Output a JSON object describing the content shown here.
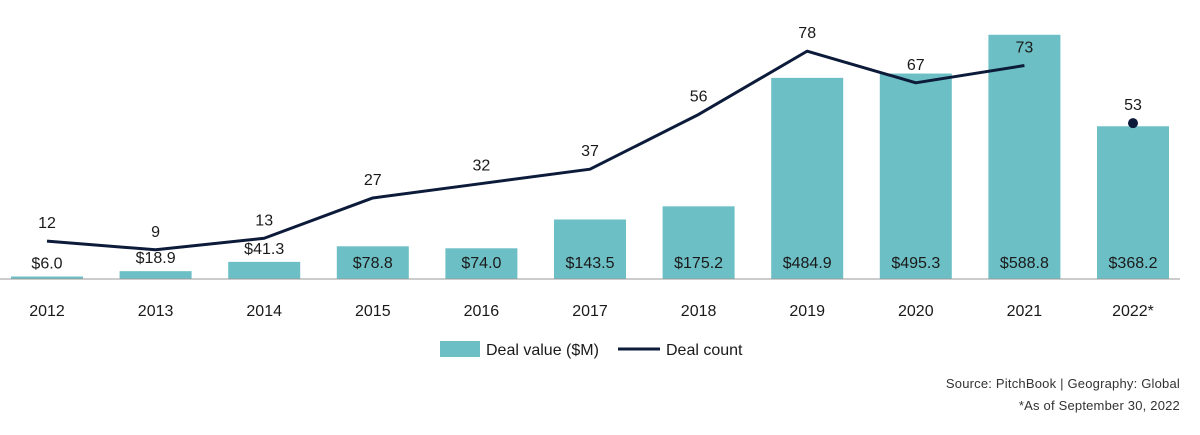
{
  "chart_data": {
    "type": "bar",
    "categories": [
      "2012",
      "2013",
      "2014",
      "2015",
      "2016",
      "2017",
      "2018",
      "2019",
      "2020",
      "2021",
      "2022*"
    ],
    "series": [
      {
        "name": "Deal value ($M)",
        "kind": "bar",
        "values": [
          6.0,
          18.9,
          41.3,
          78.8,
          74.0,
          143.5,
          175.2,
          484.9,
          495.3,
          588.8,
          368.2
        ],
        "labels": [
          "$6.0",
          "$18.9",
          "$41.3",
          "$78.8",
          "$74.0",
          "$143.5",
          "$175.2",
          "$484.9",
          "$495.3",
          "$588.8",
          "$368.2"
        ]
      },
      {
        "name": "Deal count",
        "kind": "line",
        "values": [
          12,
          9,
          13,
          27,
          32,
          37,
          56,
          78,
          67,
          73,
          53
        ],
        "labels": [
          "12",
          "9",
          "13",
          "27",
          "32",
          "37",
          "56",
          "78",
          "67",
          "73",
          "53"
        ]
      }
    ],
    "grid": false,
    "legend": "bottom-center",
    "colors": {
      "bar": "#6cbfc5",
      "line": "#0d1b3a"
    }
  },
  "footer": {
    "source": "Source: PitchBook | Geography: Global",
    "note": "*As of September 30, 2022"
  }
}
